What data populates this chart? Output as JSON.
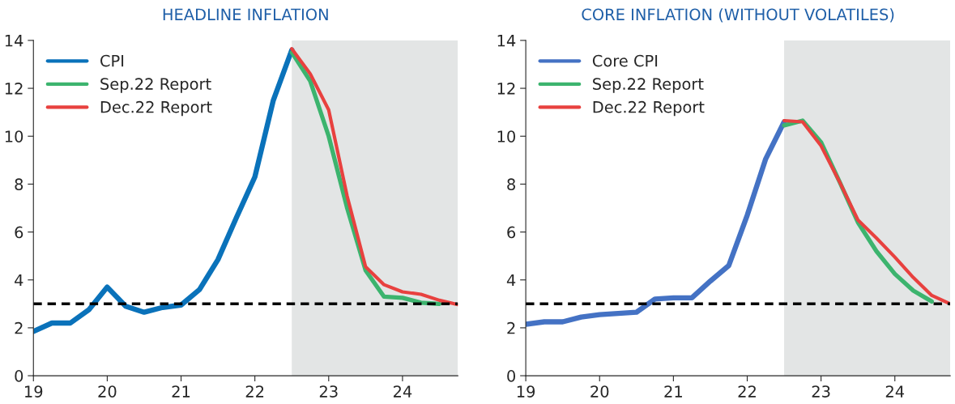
{
  "chart_data": [
    {
      "type": "line",
      "title": "HEADLINE INFLATION",
      "legend": "top left",
      "grid": false,
      "xlim": [
        19,
        24.75
      ],
      "xticks": [
        19,
        20,
        21,
        22,
        23,
        24
      ],
      "ylim": [
        0,
        14
      ],
      "yticks": [
        0,
        2,
        4,
        6,
        8,
        10,
        12,
        14
      ],
      "series": [
        {
          "name": "CPI",
          "color": "#0a72ba",
          "x": [
            19,
            19.25,
            19.5,
            19.75,
            20,
            20.25,
            20.5,
            20.75,
            21,
            21.25,
            21.5,
            21.75,
            22,
            22.25,
            22.5
          ],
          "values": [
            1.85,
            2.2,
            2.2,
            2.75,
            3.7,
            2.9,
            2.65,
            2.85,
            2.95,
            3.6,
            4.85,
            6.6,
            8.3,
            11.5,
            13.6
          ]
        },
        {
          "name": "Sep.22 Report",
          "color": "#3cb46e",
          "x": [
            22.5,
            22.75,
            23,
            23.25,
            23.5,
            23.75,
            24,
            24.25,
            24.5
          ],
          "values": [
            13.5,
            12.3,
            10.0,
            7.0,
            4.4,
            3.3,
            3.25,
            3.05,
            3.0
          ]
        },
        {
          "name": "Dec.22 Report",
          "color": "#e8413f",
          "x": [
            22.5,
            22.75,
            23,
            23.25,
            23.5,
            23.75,
            24,
            24.25,
            24.5,
            24.75
          ],
          "values": [
            13.65,
            12.6,
            11.1,
            7.5,
            4.55,
            3.8,
            3.5,
            3.4,
            3.15,
            2.97
          ]
        }
      ],
      "ref_lines": [
        {
          "axis": "y",
          "value": 3,
          "color": "#000000",
          "line_style": "dashed"
        }
      ],
      "bands": [
        {
          "axis": "x",
          "from": 22.5,
          "to": 24.75,
          "color": "#e3e5e5"
        }
      ]
    },
    {
      "type": "line",
      "title": "CORE INFLATION (WITHOUT VOLATILES)",
      "legend": "top left",
      "grid": false,
      "xlim": [
        19,
        24.75
      ],
      "xticks": [
        19,
        20,
        21,
        22,
        23,
        24
      ],
      "ylim": [
        0,
        14
      ],
      "yticks": [
        0,
        2,
        4,
        6,
        8,
        10,
        12,
        14
      ],
      "series": [
        {
          "name": "Core CPI",
          "color": "#4472c4",
          "x": [
            19,
            19.25,
            19.5,
            19.75,
            20,
            20.25,
            20.5,
            20.75,
            21,
            21.25,
            21.5,
            21.75,
            22,
            22.25,
            22.5
          ],
          "values": [
            2.15,
            2.25,
            2.25,
            2.45,
            2.55,
            2.6,
            2.65,
            3.2,
            3.25,
            3.25,
            3.95,
            4.6,
            6.7,
            9.05,
            10.6
          ]
        },
        {
          "name": "Sep.22 Report",
          "color": "#3cb46e",
          "x": [
            22.5,
            22.75,
            23,
            23.25,
            23.5,
            23.75,
            24,
            24.25,
            24.5
          ],
          "values": [
            10.45,
            10.65,
            9.75,
            8.1,
            6.4,
            5.2,
            4.25,
            3.55,
            3.1
          ]
        },
        {
          "name": "Dec.22 Report",
          "color": "#e8413f",
          "x": [
            22.5,
            22.75,
            23,
            23.25,
            23.5,
            23.75,
            24,
            24.25,
            24.5,
            24.75
          ],
          "values": [
            10.65,
            10.6,
            9.6,
            8.1,
            6.5,
            5.75,
            4.95,
            4.1,
            3.35,
            3.0
          ]
        }
      ],
      "ref_lines": [
        {
          "axis": "y",
          "value": 3,
          "color": "#000000",
          "line_style": "dashed"
        }
      ],
      "bands": [
        {
          "axis": "x",
          "from": 22.5,
          "to": 24.75,
          "color": "#e3e5e5"
        }
      ]
    }
  ]
}
